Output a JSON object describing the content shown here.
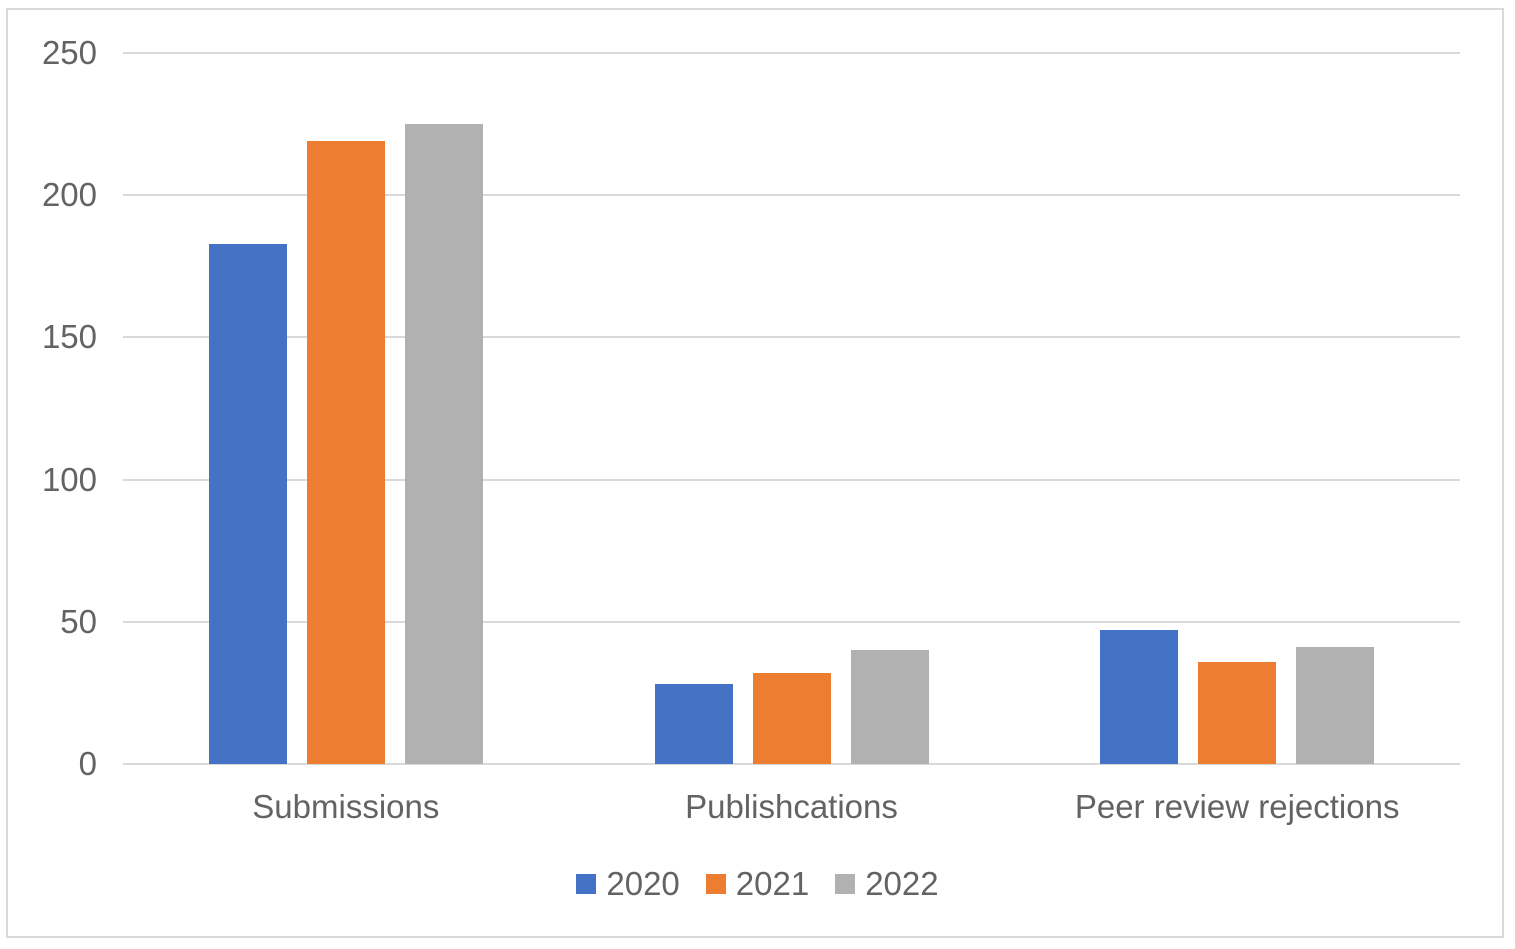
{
  "chart_data": {
    "type": "bar",
    "title": "",
    "xlabel": "",
    "ylabel": "",
    "categories": [
      "Submissions",
      "Publishcations",
      "Peer review rejections"
    ],
    "series": [
      {
        "name": "2020",
        "color": "#4472C4",
        "values": [
          183,
          28,
          47
        ]
      },
      {
        "name": "2021",
        "color": "#ED7D31",
        "values": [
          219,
          32,
          36
        ]
      },
      {
        "name": "2022",
        "color": "#B1B1B2",
        "values": [
          225,
          40,
          41
        ]
      }
    ],
    "ylim": [
      0,
      250
    ],
    "y_ticks": [
      "0",
      "50",
      "100",
      "150",
      "200",
      "250"
    ],
    "grid": true,
    "legend_position": "bottom"
  },
  "colors": {
    "gridline": "#d9d9d9",
    "chart_border": "#d9d9d9",
    "axis_text": "#636363",
    "background": "#ffffff"
  }
}
